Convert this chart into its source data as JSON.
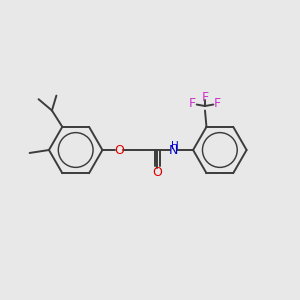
{
  "background_color": "#e8e8e8",
  "bond_color": "#3c3c3c",
  "oxygen_color": "#dd0000",
  "nitrogen_color": "#0000cc",
  "fluorine_color": "#cc33cc",
  "bond_width": 1.4,
  "fig_width": 3.0,
  "fig_height": 3.0,
  "dpi": 100,
  "xlim": [
    0,
    10
  ],
  "ylim": [
    1,
    9
  ]
}
